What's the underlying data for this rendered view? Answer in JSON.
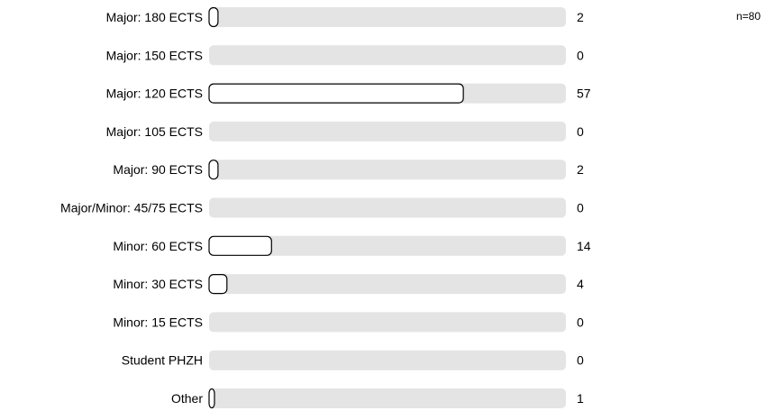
{
  "n_label": "n=80",
  "chart_data": {
    "type": "bar",
    "orientation": "horizontal",
    "total": 80,
    "categories": [
      "Major: 180 ECTS",
      "Major: 150 ECTS",
      "Major: 120 ECTS",
      "Major: 105 ECTS",
      "Major: 90 ECTS",
      "Major/Minor: 45/75 ECTS",
      "Minor: 60 ECTS",
      "Minor: 30 ECTS",
      "Minor: 15 ECTS",
      "Student PHZH",
      "Other"
    ],
    "values": [
      2,
      0,
      57,
      0,
      2,
      0,
      14,
      4,
      0,
      0,
      1
    ],
    "xlim": [
      0,
      80
    ],
    "colors": {
      "track": "#e4e4e4",
      "bar": "#ffffff",
      "bar_border": "#000000",
      "text": "#000000"
    }
  }
}
